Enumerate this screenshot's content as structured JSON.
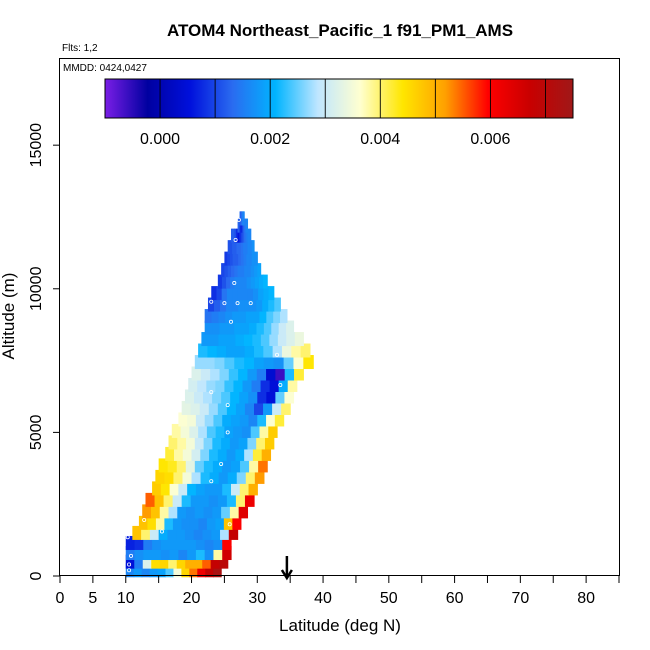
{
  "chart_data": {
    "type": "heatmap",
    "title": "ATOM4 Northeast_Pacific_1 f91_PM1_AMS",
    "flights_label": "Flts: 1,2",
    "date_label": "MMDD: 0424,0427",
    "xlabel": "Latitude (deg N)",
    "ylabel": "Altitude (m)",
    "xlim": [
      0,
      85
    ],
    "ylim": [
      0,
      18000
    ],
    "x_ticks": [
      0,
      5,
      10,
      20,
      30,
      40,
      50,
      60,
      70,
      80
    ],
    "y_ticks": [
      0,
      5000,
      10000,
      15000
    ],
    "colorbar": {
      "min": -0.001,
      "max": 0.0075,
      "ticks": [
        0.0,
        0.002,
        0.004,
        0.006
      ],
      "tick_labels": [
        "0.000",
        "0.002",
        "0.004",
        "0.006"
      ],
      "colors": [
        "#7a1ee6",
        "#0000a0",
        "#0010dc",
        "#2a6cf0",
        "#00b4ff",
        "#bfe6ff",
        "#ffffd0",
        "#ffe600",
        "#ffa000",
        "#ff0000",
        "#c80000",
        "#a01818"
      ]
    },
    "arrow_latitude": 34.5,
    "bins": [
      {
        "alt": 200,
        "lat_start": 10,
        "lat_end": 24.5,
        "values": [
          0.0016,
          0.0018,
          0.0016,
          0.0018,
          0.0019,
          0.0024,
          0.0035,
          0.0046,
          0.0054,
          0.0062,
          0.0068,
          0.0073
        ]
      },
      {
        "alt": 500,
        "lat_start": 10,
        "lat_end": 25.5,
        "values": [
          0.0005,
          0.0015,
          0.0032,
          0.0045,
          0.0046,
          0.004,
          0.0046,
          0.005,
          0.005,
          0.0055,
          0.0068,
          0.007
        ]
      },
      {
        "alt": 800,
        "lat_start": 10,
        "lat_end": 26,
        "values": [
          0.0015,
          0.0017,
          0.0018,
          0.0018,
          0.0017,
          0.0018,
          0.0016,
          0.0018,
          0.0022,
          0.0017,
          0.0038,
          0.0066
        ]
      },
      {
        "alt": 1150,
        "lat_start": 10,
        "lat_end": 26,
        "values": [
          0.0007,
          0.0008,
          0.0015,
          0.0017,
          0.0018,
          0.0018,
          0.0018,
          0.0018,
          0.0017,
          0.0016,
          0.0017,
          0.006
        ]
      },
      {
        "alt": 1500,
        "lat_start": 11,
        "lat_end": 27,
        "values": [
          0.0048,
          0.004,
          0.003,
          0.002,
          0.0018,
          0.0018,
          0.0017,
          0.0016,
          0.0017,
          0.0018,
          0.0028,
          0.0068
        ]
      },
      {
        "alt": 1850,
        "lat_start": 12,
        "lat_end": 27.5,
        "values": [
          0.0048,
          0.0045,
          0.0038,
          0.0022,
          0.0018,
          0.0017,
          0.0017,
          0.0016,
          0.0018,
          0.0019,
          0.0048,
          0.006
        ]
      },
      {
        "alt": 2250,
        "lat_start": 12.5,
        "lat_end": 28.5,
        "values": [
          0.0052,
          0.0048,
          0.0038,
          0.0028,
          0.0018,
          0.0017,
          0.0018,
          0.0017,
          0.0018,
          0.0025,
          0.0038,
          0.0064
        ]
      },
      {
        "alt": 2650,
        "lat_start": 13,
        "lat_end": 29.5,
        "values": [
          0.0055,
          0.0048,
          0.004,
          0.003,
          0.0022,
          0.0018,
          0.0018,
          0.0017,
          0.0018,
          0.0022,
          0.004,
          0.0062
        ]
      },
      {
        "alt": 3050,
        "lat_start": 14,
        "lat_end": 30,
        "values": [
          0.0047,
          0.0044,
          0.0036,
          0.003,
          0.0021,
          0.0019,
          0.0018,
          0.0018,
          0.0022,
          0.003,
          0.004,
          0.005
        ]
      },
      {
        "alt": 3450,
        "lat_start": 14.5,
        "lat_end": 31,
        "values": [
          0.0046,
          0.0045,
          0.004,
          0.0035,
          0.0028,
          0.0022,
          0.002,
          0.0018,
          0.002,
          0.0026,
          0.004,
          0.0052
        ]
      },
      {
        "alt": 3850,
        "lat_start": 15,
        "lat_end": 31.5,
        "values": [
          0.0044,
          0.0043,
          0.004,
          0.0033,
          0.0025,
          0.0022,
          0.002,
          0.0018,
          0.0019,
          0.0024,
          0.0038,
          0.0054
        ]
      },
      {
        "alt": 4250,
        "lat_start": 16,
        "lat_end": 32,
        "values": [
          0.0042,
          0.0038,
          0.0035,
          0.0031,
          0.0026,
          0.0022,
          0.002,
          0.0018,
          0.002,
          0.0028,
          0.0042,
          0.005
        ]
      },
      {
        "alt": 4650,
        "lat_start": 16.5,
        "lat_end": 32.5,
        "values": [
          0.004,
          0.0038,
          0.0035,
          0.003,
          0.0026,
          0.0022,
          0.002,
          0.0018,
          0.0019,
          0.0026,
          0.004,
          0.0047
        ]
      },
      {
        "alt": 5050,
        "lat_start": 17,
        "lat_end": 33,
        "values": [
          0.0038,
          0.0035,
          0.0032,
          0.0028,
          0.0024,
          0.0022,
          0.0019,
          0.0018,
          0.0017,
          0.0024,
          0.0038,
          0.0047
        ]
      },
      {
        "alt": 5450,
        "lat_start": 18,
        "lat_end": 34,
        "values": [
          0.0036,
          0.0035,
          0.003,
          0.0027,
          0.0024,
          0.002,
          0.0019,
          0.0018,
          0.0016,
          0.0022,
          0.0036,
          0.0042
        ]
      },
      {
        "alt": 5850,
        "lat_start": 18.5,
        "lat_end": 35,
        "values": [
          0.0033,
          0.0032,
          0.003,
          0.0027,
          0.0024,
          0.0021,
          0.0019,
          0.0016,
          0.001,
          0.0018,
          0.003,
          0.004
        ]
      },
      {
        "alt": 6250,
        "lat_start": 19,
        "lat_end": 35.5,
        "values": [
          0.0032,
          0.003,
          0.0028,
          0.0026,
          0.0024,
          0.0021,
          0.0019,
          0.0017,
          0.0008,
          0.0005,
          0.0025,
          0.0036
        ]
      },
      {
        "alt": 6650,
        "lat_start": 19.5,
        "lat_end": 36,
        "values": [
          0.0031,
          0.0029,
          0.0027,
          0.0026,
          0.0023,
          0.0021,
          0.0018,
          0.0015,
          0.0008,
          0.0005,
          0.002,
          0.0038
        ]
      },
      {
        "alt": 7050,
        "lat_start": 20,
        "lat_end": 37,
        "values": [
          0.0032,
          0.003,
          0.0028,
          0.0026,
          0.0023,
          0.0021,
          0.0018,
          0.0015,
          0.0004,
          -0.0006,
          0.0022,
          0.0042
        ]
      },
      {
        "alt": 7450,
        "lat_start": 20.5,
        "lat_end": 38.5,
        "values": [
          0.0027,
          0.0027,
          0.0026,
          0.0024,
          0.0022,
          0.0021,
          0.0019,
          0.0018,
          0.0017,
          0.0025,
          0.0036,
          0.0044
        ]
      },
      {
        "alt": 7850,
        "lat_start": 21,
        "lat_end": 38,
        "values": [
          0.0022,
          0.0021,
          0.002,
          0.0019,
          0.0019,
          0.002,
          0.0022,
          0.0024,
          0.0028,
          0.0034,
          0.0038,
          0.004
        ]
      },
      {
        "alt": 8250,
        "lat_start": 21.5,
        "lat_end": 37,
        "values": [
          0.0018,
          0.0018,
          0.0019,
          0.0019,
          0.002,
          0.0021,
          0.0022,
          0.0024,
          0.0027,
          0.003,
          0.0032,
          0.0034
        ]
      },
      {
        "alt": 8650,
        "lat_start": 22,
        "lat_end": 35.5,
        "values": [
          0.0017,
          0.0017,
          0.0018,
          0.0018,
          0.0019,
          0.0019,
          0.002,
          0.0022,
          0.0024,
          0.0027,
          0.003,
          0.0032
        ]
      },
      {
        "alt": 9050,
        "lat_start": 22,
        "lat_end": 34.5,
        "values": [
          0.0014,
          0.0015,
          0.0016,
          0.0017,
          0.0018,
          0.0018,
          0.0019,
          0.0019,
          0.0021,
          0.0024,
          0.0026,
          0.0028
        ]
      },
      {
        "alt": 9450,
        "lat_start": 22.5,
        "lat_end": 33.5,
        "values": [
          0.001,
          0.0012,
          0.0014,
          0.0016,
          0.0016,
          0.0017,
          0.0017,
          0.0017,
          0.0018,
          0.002,
          0.0022,
          0.0024
        ]
      },
      {
        "alt": 9850,
        "lat_start": 23,
        "lat_end": 32.5,
        "values": [
          0.0008,
          0.001,
          0.0014,
          0.0016,
          0.0016,
          0.0016,
          0.0016,
          0.0016,
          0.0017,
          0.0019,
          0.002,
          0.0021
        ]
      },
      {
        "alt": 10250,
        "lat_start": 24,
        "lat_end": 31.5,
        "values": [
          0.0009,
          0.0011,
          0.0013,
          0.0015,
          0.0016,
          0.0016,
          0.0016,
          0.0017,
          0.0018,
          0.0019,
          0.002,
          0.0021
        ]
      },
      {
        "alt": 10650,
        "lat_start": 24.5,
        "lat_end": 30.5,
        "values": [
          0.001,
          0.0011,
          0.0012,
          0.0013,
          0.0014,
          0.0015,
          0.0015,
          0.0016,
          0.0016,
          0.0017,
          0.0018,
          0.0019
        ]
      },
      {
        "alt": 11050,
        "lat_start": 25,
        "lat_end": 30,
        "values": [
          0.0009,
          0.001,
          0.0011,
          0.0012,
          0.0012,
          0.0013,
          0.0014,
          0.0015,
          0.0016,
          0.0016,
          0.0017,
          0.0017
        ]
      },
      {
        "alt": 11450,
        "lat_start": 25.5,
        "lat_end": 29.5,
        "values": [
          0.0011,
          0.0011,
          0.0012,
          0.0012,
          0.0013,
          0.0013,
          0.0014,
          0.0015,
          0.0015,
          0.0016,
          0.0016,
          0.0017
        ]
      },
      {
        "alt": 11850,
        "lat_start": 26,
        "lat_end": 29,
        "values": [
          0.0012,
          0.0012,
          0.0011,
          0.0008,
          0.0006,
          0.0008,
          0.001,
          0.0012,
          0.0014,
          0.0015,
          0.0016,
          0.0016
        ]
      },
      {
        "alt": 12200,
        "lat_start": 27,
        "lat_end": 28.5,
        "values": [
          0.0013,
          0.0012,
          0.001,
          0.0008,
          0.0007,
          0.0009,
          0.0011,
          0.0013,
          0.0014,
          0.0015,
          0.0016,
          0.0016
        ]
      },
      {
        "alt": 12450,
        "lat_start": 27.3,
        "lat_end": 28,
        "values": [
          0.0014,
          0.0013,
          0.0012,
          0.0012,
          0.0013,
          0.0014,
          0.0015,
          0.0015,
          0.0016,
          0.0016,
          0.0016,
          0.0016
        ]
      }
    ],
    "points": [
      {
        "lat": 10.5,
        "alt": 200
      },
      {
        "lat": 10.5,
        "alt": 400
      },
      {
        "lat": 10.8,
        "alt": 700
      },
      {
        "lat": 10.3,
        "alt": 1350
      },
      {
        "lat": 12.8,
        "alt": 1950
      },
      {
        "lat": 15.5,
        "alt": 1550
      },
      {
        "lat": 25.8,
        "alt": 1800
      },
      {
        "lat": 23,
        "alt": 3300
      },
      {
        "lat": 24.5,
        "alt": 3900
      },
      {
        "lat": 25.5,
        "alt": 5000
      },
      {
        "lat": 25.5,
        "alt": 5950
      },
      {
        "lat": 23,
        "alt": 6400
      },
      {
        "lat": 33.5,
        "alt": 6650
      },
      {
        "lat": 33,
        "alt": 7700
      },
      {
        "lat": 26,
        "alt": 8850
      },
      {
        "lat": 23,
        "alt": 9550
      },
      {
        "lat": 25,
        "alt": 9500
      },
      {
        "lat": 27,
        "alt": 9500
      },
      {
        "lat": 29,
        "alt": 9500
      },
      {
        "lat": 22.5,
        "alt": 9850
      },
      {
        "lat": 26.5,
        "alt": 10200
      },
      {
        "lat": 26.7,
        "alt": 11700
      },
      {
        "lat": 27.2,
        "alt": 12400
      }
    ]
  }
}
